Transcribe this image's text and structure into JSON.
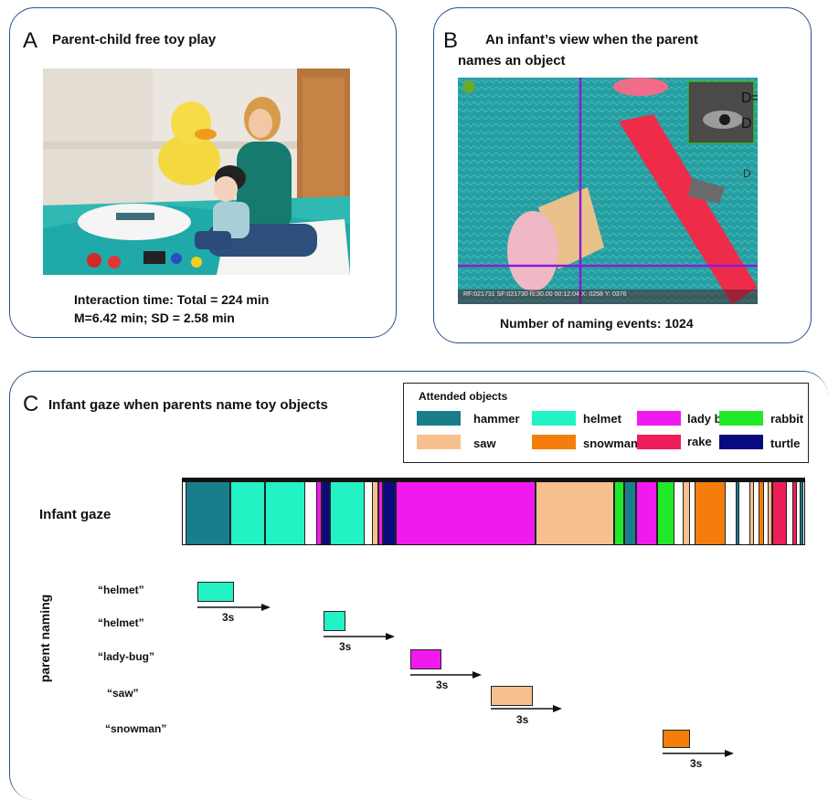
{
  "panel_a": {
    "letter": "A",
    "title": "Parent-child free toy play",
    "caption_line1": "Interaction time: Total = 224 min",
    "caption_line2": "M=6.42 min; SD = 2.58 min"
  },
  "panel_b": {
    "letter": "B",
    "title_line1": "An infant’s view when the parent",
    "title_line2": "names an object",
    "overlay_text": "RF:021731 SF:021730 fs:30.00 00:12:04 X: 0258 Y: 0376",
    "inset_text_1": "D=",
    "inset_text_2": "D",
    "inset_text_3": "D",
    "caption": "Number of naming events: 1024"
  },
  "panel_c": {
    "letter": "C",
    "title": "Infant gaze when parents name toy objects",
    "legend_title": "Attended objects",
    "legend": [
      {
        "name": "hammer",
        "color": "#1a7d8c"
      },
      {
        "name": "helmet",
        "color": "#22f2c4"
      },
      {
        "name": "lady bug",
        "color": "#f01aef"
      },
      {
        "name": "rabbit",
        "color": "#22e82a"
      },
      {
        "name": "saw",
        "color": "#f8c08e"
      },
      {
        "name": "snowman",
        "color": "#f57d0c"
      },
      {
        "name": "rake",
        "color": "#ef1d5a"
      },
      {
        "name": "turtle",
        "color": "#0a0a80"
      }
    ],
    "gaze_label": "Infant gaze",
    "gaze_segments": [
      {
        "obj": "hammer",
        "start": 0.0,
        "end": 0.072
      },
      {
        "obj": "helmet",
        "start": 0.072,
        "end": 0.128
      },
      {
        "obj": "helmet",
        "start": 0.128,
        "end": 0.194
      },
      {
        "obj": "lady bug",
        "start": 0.212,
        "end": 0.22
      },
      {
        "obj": "turtle",
        "start": 0.22,
        "end": 0.234
      },
      {
        "obj": "helmet",
        "start": 0.234,
        "end": 0.29
      },
      {
        "obj": "saw",
        "start": 0.302,
        "end": 0.312
      },
      {
        "obj": "lady bug",
        "start": 0.312,
        "end": 0.32
      },
      {
        "obj": "turtle",
        "start": 0.32,
        "end": 0.34
      },
      {
        "obj": "lady bug",
        "start": 0.34,
        "end": 0.566
      },
      {
        "obj": "saw",
        "start": 0.566,
        "end": 0.694
      },
      {
        "obj": "rabbit",
        "start": 0.694,
        "end": 0.71
      },
      {
        "obj": "hammer",
        "start": 0.71,
        "end": 0.729
      },
      {
        "obj": "lady bug",
        "start": 0.729,
        "end": 0.763
      },
      {
        "obj": "rabbit",
        "start": 0.763,
        "end": 0.792
      },
      {
        "obj": "saw",
        "start": 0.804,
        "end": 0.816
      },
      {
        "obj": "snowman",
        "start": 0.824,
        "end": 0.875
      },
      {
        "obj": "hammer",
        "start": 0.89,
        "end": 0.897
      },
      {
        "obj": "saw",
        "start": 0.912,
        "end": 0.92
      },
      {
        "obj": "snowman",
        "start": 0.928,
        "end": 0.936
      },
      {
        "obj": "saw",
        "start": 0.943,
        "end": 0.95
      },
      {
        "obj": "rake",
        "start": 0.95,
        "end": 0.974
      },
      {
        "obj": "rake",
        "start": 0.982,
        "end": 0.99
      },
      {
        "obj": "hammer",
        "start": 1.0,
        "end": 1.0
      }
    ],
    "naming_axis_label": "parent naming",
    "naming_events": [
      {
        "word": "“helmet”",
        "obj": "helmet",
        "duration_label": "3s"
      },
      {
        "word": "“helmet”",
        "obj": "helmet",
        "duration_label": "3s"
      },
      {
        "word": "“lady-bug”",
        "obj": "lady bug",
        "duration_label": "3s"
      },
      {
        "word": "“saw”",
        "obj": "saw",
        "duration_label": "3s"
      },
      {
        "word": "“snowman”",
        "obj": "snowman",
        "duration_label": "3s"
      }
    ]
  }
}
